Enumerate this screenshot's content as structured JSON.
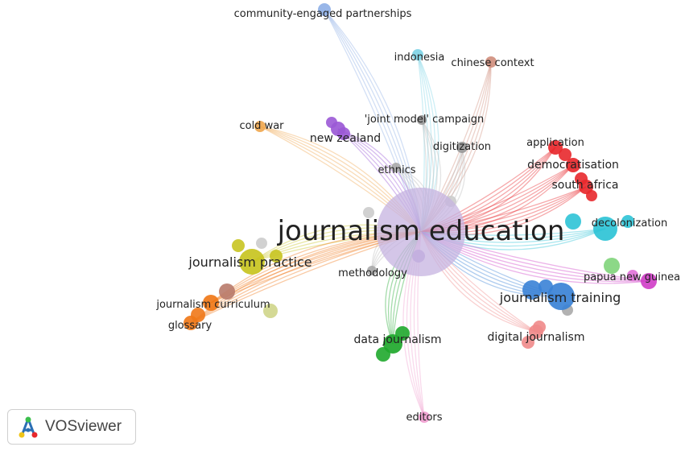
{
  "nodes": [
    {
      "id": "community",
      "label": "community-engaged partnerships",
      "color": "#8fb0e6"
    },
    {
      "id": "indonesia",
      "label": "indonesia",
      "color": "#7fd4e6"
    },
    {
      "id": "chinese",
      "label": "chinese context",
      "color": "#d08f7e"
    },
    {
      "id": "joint",
      "label": "'joint model' campaign",
      "color": "#999999"
    },
    {
      "id": "coldwar",
      "label": "cold war",
      "color": "#f0a850"
    },
    {
      "id": "newzealand",
      "label": "new zealand",
      "color": "#9b59d6"
    },
    {
      "id": "digitization",
      "label": "digitization",
      "color": "#999999"
    },
    {
      "id": "ethnics",
      "label": "ethnics",
      "color": "#aaaaaa"
    },
    {
      "id": "application",
      "label": "application",
      "color": "#e8282c"
    },
    {
      "id": "democratisation",
      "label": "democratisation",
      "color": "#e8282c"
    },
    {
      "id": "southafrica",
      "label": "south africa",
      "color": "#e8282c"
    },
    {
      "id": "je",
      "label": "journalism education",
      "color": "#c5b3e0"
    },
    {
      "id": "decolonization",
      "label": "decolonization",
      "color": "#2ec3d6"
    },
    {
      "id": "jpractice",
      "label": "journalism practice",
      "color": "#c8c420"
    },
    {
      "id": "methodology",
      "label": "methodology",
      "color": "#aaaaaa"
    },
    {
      "id": "papua",
      "label": "papua new guinea",
      "color": "#d040c8"
    },
    {
      "id": "jtraining",
      "label": "journalism training",
      "color": "#3a82d6"
    },
    {
      "id": "jcurriculum",
      "label": "journalism curriculum",
      "color": "#f07818"
    },
    {
      "id": "glossary",
      "label": "glossary",
      "color": "#f07818"
    },
    {
      "id": "datajournalism",
      "label": "data journalism",
      "color": "#1fa82c"
    },
    {
      "id": "digitaljournalism",
      "label": "digital journalism",
      "color": "#f08a8a"
    },
    {
      "id": "editors",
      "label": "editors",
      "color": "#f0a0d0"
    }
  ],
  "links": [
    {
      "target": "community",
      "color": "#8fb0e6"
    },
    {
      "target": "indonesia",
      "color": "#7fd4e6"
    },
    {
      "target": "chinese",
      "color": "#d08f7e"
    },
    {
      "target": "joint",
      "color": "#bbbbbb"
    },
    {
      "target": "coldwar",
      "color": "#f0a850"
    },
    {
      "target": "newzealand",
      "color": "#9b59d6"
    },
    {
      "target": "digitization",
      "color": "#bbbbbb"
    },
    {
      "target": "ethnics",
      "color": "#bbbbbb"
    },
    {
      "target": "application",
      "color": "#e8282c"
    },
    {
      "target": "democratisation",
      "color": "#e8282c"
    },
    {
      "target": "southafrica",
      "color": "#e8282c"
    },
    {
      "target": "decolonization",
      "color": "#2ec3d6"
    },
    {
      "target": "jpractice",
      "color": "#c8c420"
    },
    {
      "target": "methodology",
      "color": "#bbbbbb"
    },
    {
      "target": "papua",
      "color": "#d040c8"
    },
    {
      "target": "jtraining",
      "color": "#3a82d6"
    },
    {
      "target": "jcurriculum",
      "color": "#f07818"
    },
    {
      "target": "glossary",
      "color": "#f07818"
    },
    {
      "target": "datajournalism",
      "color": "#1fa82c"
    },
    {
      "target": "digitaljournalism",
      "color": "#f08a8a"
    },
    {
      "target": "editors",
      "color": "#f0a0d0"
    }
  ],
  "brand": {
    "name": "VOSviewer"
  }
}
